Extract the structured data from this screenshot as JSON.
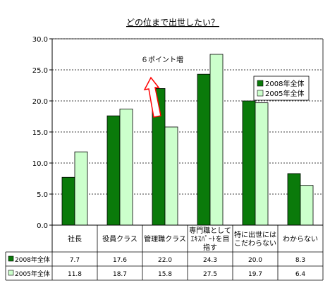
{
  "colors": {
    "series_2008": "#0a7a0a",
    "series_2005": "#ccffcc",
    "bar_stroke": "#000000",
    "grid": "#000000",
    "arrow_stroke": "#ff0000",
    "background": "#ffffff"
  },
  "chart_data": {
    "type": "bar",
    "title": "どの位まで出世したい？",
    "categories": [
      [
        "社長"
      ],
      [
        "役員クラス"
      ],
      [
        "管理職クラス"
      ],
      [
        "専門職として",
        "ｴｷｽﾊﾟｰﾄを目",
        "指す"
      ],
      [
        "特に出世には",
        "こだわらない"
      ],
      [
        "わからない"
      ]
    ],
    "series": [
      {
        "name": "2008年全体",
        "values": [
          7.7,
          17.6,
          22.0,
          24.3,
          20.0,
          8.3
        ],
        "labels": [
          "7.7",
          "17.6",
          "22.0",
          "24.3",
          "20.0",
          "8.3"
        ]
      },
      {
        "name": "2005年全体",
        "values": [
          11.8,
          18.7,
          15.8,
          27.5,
          19.7,
          6.4
        ],
        "labels": [
          "11.8",
          "18.7",
          "15.8",
          "27.5",
          "19.7",
          "6.4"
        ]
      }
    ],
    "ylim": [
      0,
      30
    ],
    "yticks": [
      "0.0",
      "5.0",
      "10.0",
      "15.0",
      "20.0",
      "25.0",
      "30.0"
    ],
    "ytick_values": [
      0,
      5,
      10,
      15,
      20,
      25,
      30
    ],
    "grid": "horizontal dashed",
    "legend_position": "upper-right",
    "annotation": {
      "text": "６ポイント増",
      "target_category_index": 2
    }
  }
}
